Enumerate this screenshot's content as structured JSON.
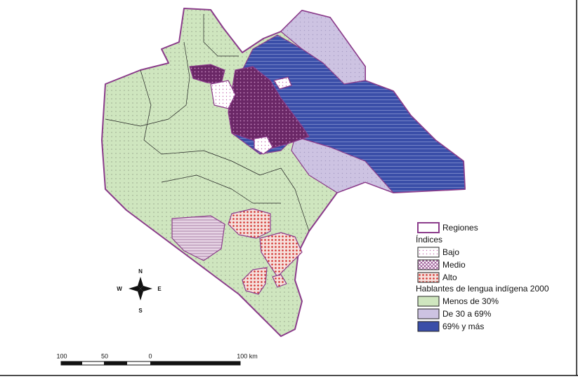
{
  "legend": {
    "regions": "Regiones",
    "indices_title": "Índices",
    "indices": [
      "Bajo",
      "Medio",
      "Alto"
    ],
    "speakers_title": "Hablantes de lengua indígena 2000",
    "speakers": [
      "Menos de 30%",
      "De 30 a 69%",
      "69% y más"
    ]
  },
  "compass": {
    "north": "N",
    "south": "S",
    "east": "E",
    "west": "W"
  },
  "scale_bar": {
    "labels": [
      "100",
      "50",
      "0",
      "100 km"
    ]
  }
}
